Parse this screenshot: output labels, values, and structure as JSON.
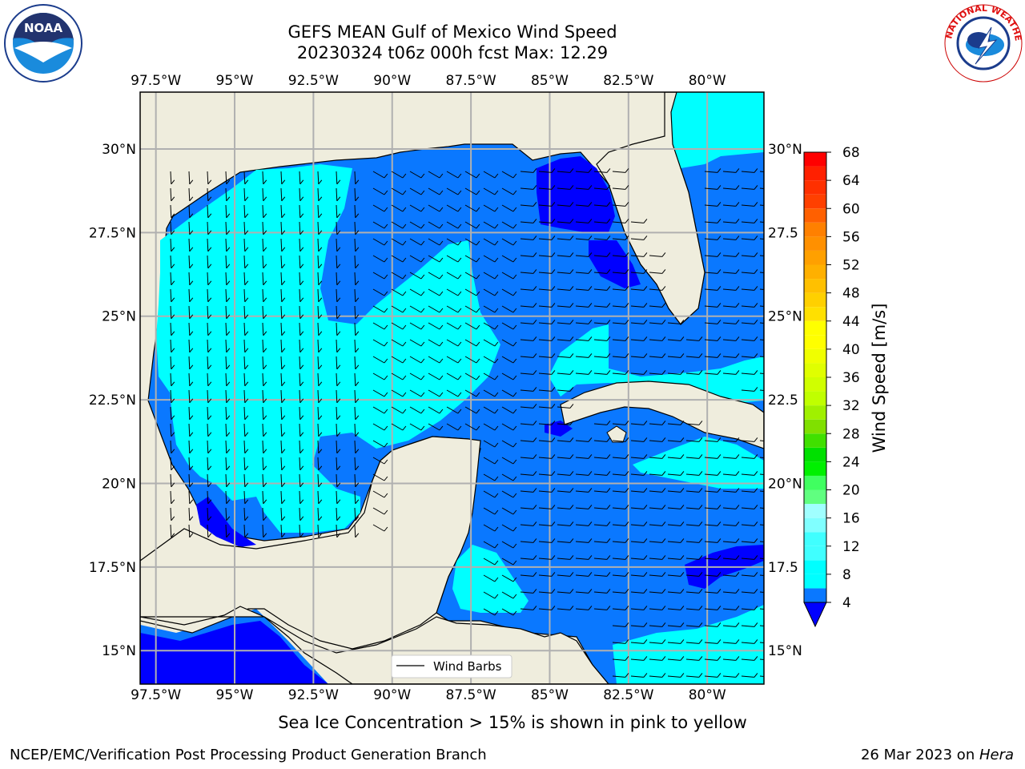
{
  "title_line1": "GEFS MEAN Gulf of Mexico Wind Speed",
  "title_line2": "20230324 t06z 000h fcst   Max: 12.29",
  "subtitle": "Sea Ice Concentration > 15% is shown in pink to yellow",
  "footer_left": "NCEP/EMC/Verification Post Processing Product Generation Branch",
  "footer_date": "26 Mar 2023 on ",
  "footer_host": "Hera",
  "legend_label": "Wind Barbs",
  "logos": {
    "left": "noaa-logo",
    "right": "national-weather-service-logo",
    "left_text": "NOAA",
    "left_ring_text": "NATIONAL OCEANIC AND ATMOSPHERIC ADMINISTRATION · U.S. DEPARTMENT OF COMMERCE",
    "right_ring_text": "NATIONAL WEATHER SERVICE"
  },
  "map": {
    "lon_ticks": [
      "97.5°W",
      "95°W",
      "92.5°W",
      "90°W",
      "87.5°W",
      "85°W",
      "82.5°W",
      "80°W"
    ],
    "lat_ticks_left": [
      "30°N",
      "27.5°N",
      "25°N",
      "22.5°N",
      "20°N",
      "17.5°N",
      "15°N"
    ],
    "lat_ticks_right": [
      "30°N",
      "27.5",
      "25°N",
      "22.5",
      "20°N",
      "17.5",
      "15°N"
    ],
    "lon_values": [
      -97.5,
      -95,
      -92.5,
      -90,
      -87.5,
      -85,
      -82.5,
      -80
    ],
    "lat_values": [
      30,
      27.5,
      25,
      22.5,
      20,
      17.5,
      15
    ],
    "extent": {
      "lon": [
        -98,
        -78.2
      ],
      "lat": [
        14,
        31.7
      ]
    },
    "land_color": "#efeddd",
    "grid_color": "#b0b0b0"
  },
  "colorbar": {
    "label": "Wind Speed [m/s]",
    "ticks": [
      "4",
      "8",
      "12",
      "16",
      "20",
      "24",
      "28",
      "32",
      "36",
      "40",
      "44",
      "48",
      "52",
      "56",
      "60",
      "64",
      "68"
    ],
    "levels": [
      4,
      6,
      8,
      10,
      12,
      14,
      16,
      18,
      20,
      22,
      24,
      26,
      28,
      30,
      32,
      34,
      36,
      38,
      40,
      42,
      44,
      46,
      48,
      50,
      52,
      54,
      56,
      58,
      60,
      62,
      64,
      66,
      68
    ],
    "colors": [
      "#0a78ff",
      "#00ffff",
      "#00ffff",
      "#40ffff",
      "#40ffff",
      "#80ffff",
      "#a0ffff",
      "#60ff80",
      "#40ff60",
      "#00f000",
      "#00e000",
      "#40e000",
      "#80e000",
      "#a0f000",
      "#c0ff00",
      "#d0ff00",
      "#e0ff00",
      "#f0ff00",
      "#ffff00",
      "#ffff00",
      "#ffe000",
      "#ffd000",
      "#ffc000",
      "#ffb000",
      "#ffa000",
      "#ff9000",
      "#ff8000",
      "#ff6000",
      "#ff4000",
      "#ff3000",
      "#ff2000",
      "#ff0000"
    ],
    "under_color": "#0000ff"
  }
}
